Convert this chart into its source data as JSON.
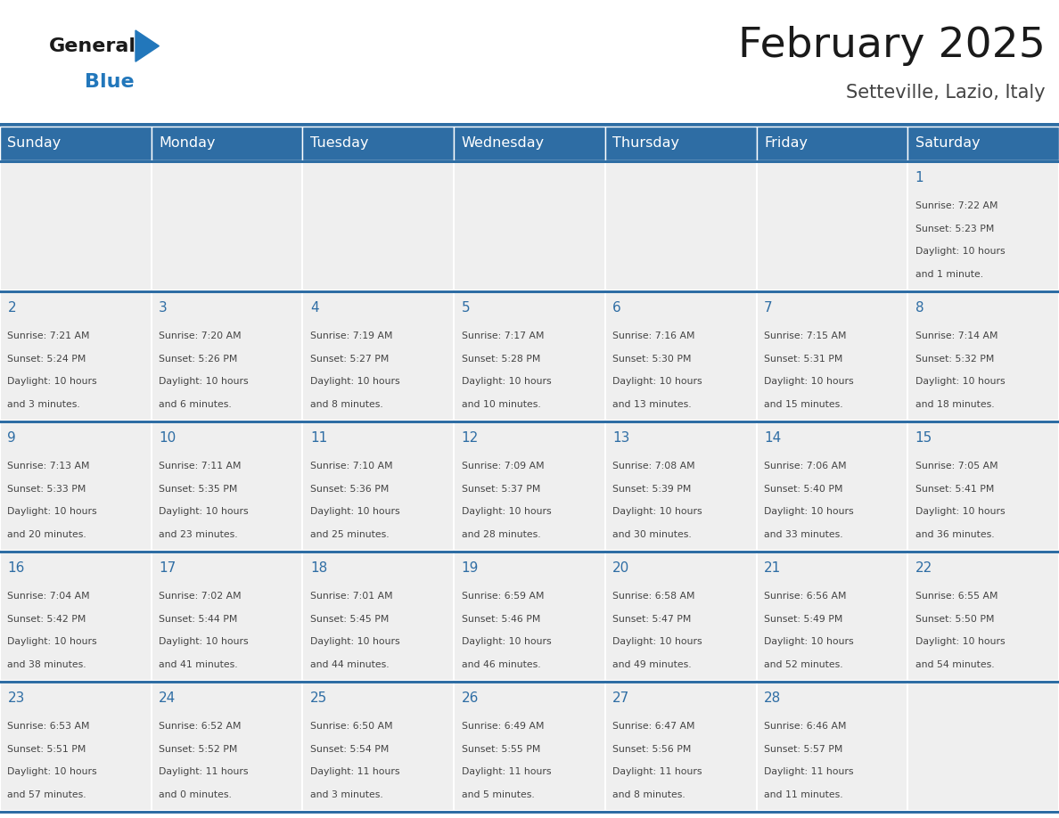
{
  "title": "February 2025",
  "subtitle": "Setteville, Lazio, Italy",
  "days_of_week": [
    "Sunday",
    "Monday",
    "Tuesday",
    "Wednesday",
    "Thursday",
    "Friday",
    "Saturday"
  ],
  "header_bg": "#2E6DA4",
  "header_text": "#FFFFFF",
  "cell_bg": "#EFEFEF",
  "cell_border": "#FFFFFF",
  "day_number_color": "#2E6DA4",
  "info_text_color": "#444444",
  "title_color": "#1a1a1a",
  "subtitle_color": "#444444",
  "logo_general_color": "#1a1a1a",
  "logo_blue_color": "#2277BB",
  "weeks": [
    [
      null,
      null,
      null,
      null,
      null,
      null,
      1
    ],
    [
      2,
      3,
      4,
      5,
      6,
      7,
      8
    ],
    [
      9,
      10,
      11,
      12,
      13,
      14,
      15
    ],
    [
      16,
      17,
      18,
      19,
      20,
      21,
      22
    ],
    [
      23,
      24,
      25,
      26,
      27,
      28,
      null
    ]
  ],
  "day_data": {
    "1": {
      "sunrise": "7:22 AM",
      "sunset": "5:23 PM",
      "daylight": "10 hours and 1 minute."
    },
    "2": {
      "sunrise": "7:21 AM",
      "sunset": "5:24 PM",
      "daylight": "10 hours and 3 minutes."
    },
    "3": {
      "sunrise": "7:20 AM",
      "sunset": "5:26 PM",
      "daylight": "10 hours and 6 minutes."
    },
    "4": {
      "sunrise": "7:19 AM",
      "sunset": "5:27 PM",
      "daylight": "10 hours and 8 minutes."
    },
    "5": {
      "sunrise": "7:17 AM",
      "sunset": "5:28 PM",
      "daylight": "10 hours and 10 minutes."
    },
    "6": {
      "sunrise": "7:16 AM",
      "sunset": "5:30 PM",
      "daylight": "10 hours and 13 minutes."
    },
    "7": {
      "sunrise": "7:15 AM",
      "sunset": "5:31 PM",
      "daylight": "10 hours and 15 minutes."
    },
    "8": {
      "sunrise": "7:14 AM",
      "sunset": "5:32 PM",
      "daylight": "10 hours and 18 minutes."
    },
    "9": {
      "sunrise": "7:13 AM",
      "sunset": "5:33 PM",
      "daylight": "10 hours and 20 minutes."
    },
    "10": {
      "sunrise": "7:11 AM",
      "sunset": "5:35 PM",
      "daylight": "10 hours and 23 minutes."
    },
    "11": {
      "sunrise": "7:10 AM",
      "sunset": "5:36 PM",
      "daylight": "10 hours and 25 minutes."
    },
    "12": {
      "sunrise": "7:09 AM",
      "sunset": "5:37 PM",
      "daylight": "10 hours and 28 minutes."
    },
    "13": {
      "sunrise": "7:08 AM",
      "sunset": "5:39 PM",
      "daylight": "10 hours and 30 minutes."
    },
    "14": {
      "sunrise": "7:06 AM",
      "sunset": "5:40 PM",
      "daylight": "10 hours and 33 minutes."
    },
    "15": {
      "sunrise": "7:05 AM",
      "sunset": "5:41 PM",
      "daylight": "10 hours and 36 minutes."
    },
    "16": {
      "sunrise": "7:04 AM",
      "sunset": "5:42 PM",
      "daylight": "10 hours and 38 minutes."
    },
    "17": {
      "sunrise": "7:02 AM",
      "sunset": "5:44 PM",
      "daylight": "10 hours and 41 minutes."
    },
    "18": {
      "sunrise": "7:01 AM",
      "sunset": "5:45 PM",
      "daylight": "10 hours and 44 minutes."
    },
    "19": {
      "sunrise": "6:59 AM",
      "sunset": "5:46 PM",
      "daylight": "10 hours and 46 minutes."
    },
    "20": {
      "sunrise": "6:58 AM",
      "sunset": "5:47 PM",
      "daylight": "10 hours and 49 minutes."
    },
    "21": {
      "sunrise": "6:56 AM",
      "sunset": "5:49 PM",
      "daylight": "10 hours and 52 minutes."
    },
    "22": {
      "sunrise": "6:55 AM",
      "sunset": "5:50 PM",
      "daylight": "10 hours and 54 minutes."
    },
    "23": {
      "sunrise": "6:53 AM",
      "sunset": "5:51 PM",
      "daylight": "10 hours and 57 minutes."
    },
    "24": {
      "sunrise": "6:52 AM",
      "sunset": "5:52 PM",
      "daylight": "11 hours and 0 minutes."
    },
    "25": {
      "sunrise": "6:50 AM",
      "sunset": "5:54 PM",
      "daylight": "11 hours and 3 minutes."
    },
    "26": {
      "sunrise": "6:49 AM",
      "sunset": "5:55 PM",
      "daylight": "11 hours and 5 minutes."
    },
    "27": {
      "sunrise": "6:47 AM",
      "sunset": "5:56 PM",
      "daylight": "11 hours and 8 minutes."
    },
    "28": {
      "sunrise": "6:46 AM",
      "sunset": "5:57 PM",
      "daylight": "11 hours and 11 minutes."
    }
  },
  "fig_width": 11.88,
  "fig_height": 9.18
}
